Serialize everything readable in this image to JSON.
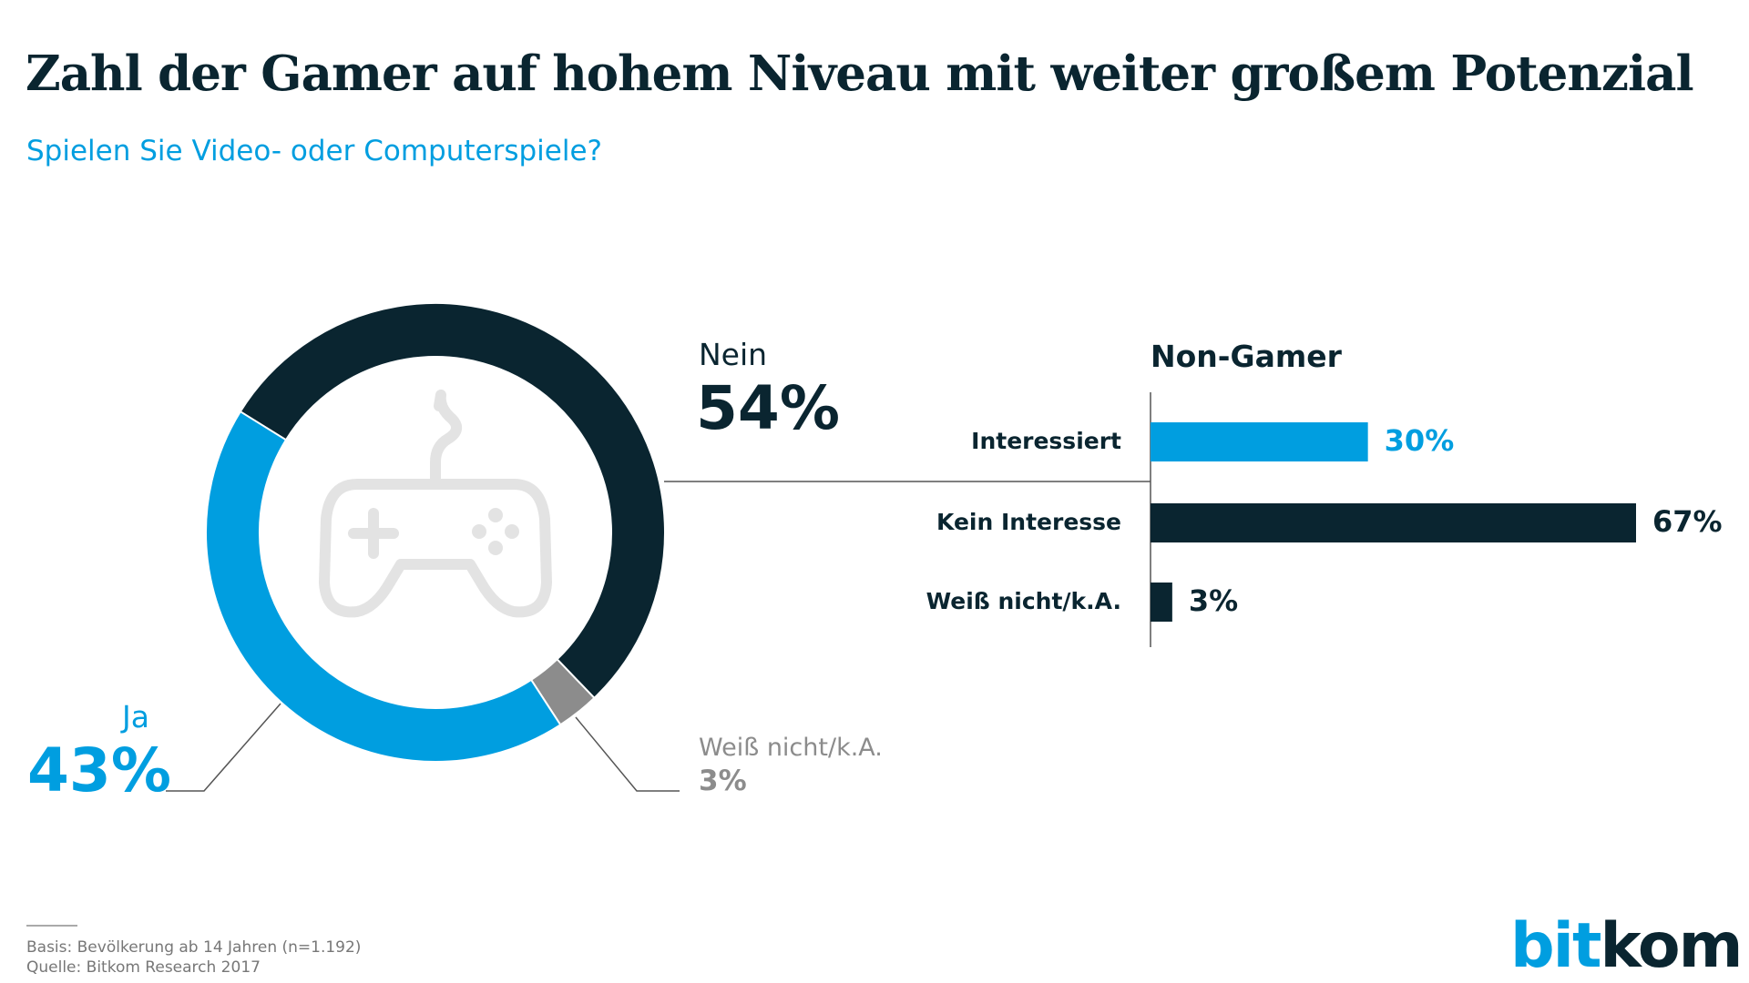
{
  "title": "Zahl der Gamer auf hohem Niveau mit weiter großem Potenzial",
  "subtitle": "Spielen Sie Video- oder Computerspiele?",
  "colors": {
    "dark": "#0a2530",
    "blue": "#009ee0",
    "gray": "#8c8c8c",
    "icon": "#e3e3e3"
  },
  "chart_data": [
    {
      "type": "pie",
      "style": "donut",
      "center_icon": "gamepad-icon",
      "slices": [
        {
          "label": "Nein",
          "value": 54,
          "display": "54%",
          "color": "#0a2530"
        },
        {
          "label": "Weiß nicht/k.A.",
          "value": 3,
          "display": "3%",
          "color": "#8c8c8c"
        },
        {
          "label": "Ja",
          "value": 43,
          "display": "43%",
          "color": "#009ee0"
        }
      ]
    },
    {
      "type": "bar",
      "orientation": "horizontal",
      "title": "Non-Gamer",
      "categories": [
        "Interessiert",
        "Kein Interesse",
        "Weiß nicht/k.A."
      ],
      "values": [
        30,
        67,
        3
      ],
      "labels": [
        "30%",
        "67%",
        "3%"
      ],
      "colors": [
        "#009ee0",
        "#0a2530",
        "#0a2530"
      ],
      "xlim": [
        0,
        100
      ]
    }
  ],
  "footer": {
    "basis": "Basis: Bevölkerung ab 14 Jahren (n=1.192)",
    "source": "Quelle: Bitkom Research 2017"
  },
  "logo": {
    "part1": "bit",
    "part2": "kom"
  }
}
